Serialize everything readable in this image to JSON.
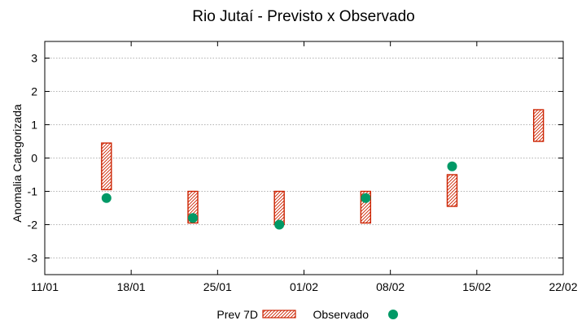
{
  "chart_data": {
    "type": "floating-bar-scatter",
    "title": "Rio Jutaí - Previsto x Observado",
    "ylabel": "Anomalia Categorizada",
    "xlabel": "",
    "ylim": [
      -3.5,
      3.5
    ],
    "yticks": [
      -3,
      -2,
      -1,
      0,
      1,
      2,
      3
    ],
    "xlim_days": [
      0,
      42
    ],
    "xticks": [
      {
        "day": 0,
        "label": "11/01"
      },
      {
        "day": 7,
        "label": "18/01"
      },
      {
        "day": 14,
        "label": "25/01"
      },
      {
        "day": 21,
        "label": "01/02"
      },
      {
        "day": 28,
        "label": "08/02"
      },
      {
        "day": 35,
        "label": "15/02"
      },
      {
        "day": 42,
        "label": "22/02"
      }
    ],
    "grid": true,
    "series": [
      {
        "name": "Prev 7D",
        "kind": "range-bar",
        "color": "#cc2200",
        "points": [
          {
            "day": 5,
            "low": -0.95,
            "high": 0.45
          },
          {
            "day": 12,
            "low": -1.95,
            "high": -1.0
          },
          {
            "day": 19,
            "low": -2.0,
            "high": -1.0
          },
          {
            "day": 26,
            "low": -1.95,
            "high": -1.0
          },
          {
            "day": 33,
            "low": -1.45,
            "high": -0.5
          },
          {
            "day": 40,
            "low": 0.5,
            "high": 1.45
          }
        ]
      },
      {
        "name": "Observado",
        "kind": "scatter",
        "color": "#009966",
        "points": [
          {
            "day": 5,
            "value": -1.2
          },
          {
            "day": 12,
            "value": -1.8
          },
          {
            "day": 19,
            "value": -2.0
          },
          {
            "day": 26,
            "value": -1.2
          },
          {
            "day": 33,
            "value": -0.25
          }
        ]
      }
    ],
    "legend": {
      "placement": "bottom-center",
      "items": [
        "Prev 7D",
        "Observado"
      ]
    }
  }
}
